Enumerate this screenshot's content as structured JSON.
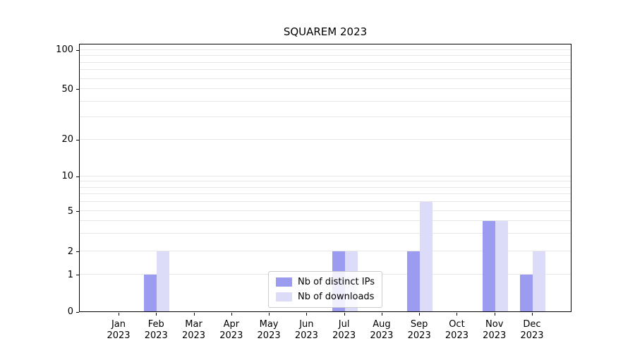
{
  "chart_data": {
    "type": "bar",
    "title": "SQUAREM 2023",
    "categories": [
      "Jan",
      "Feb",
      "Mar",
      "Apr",
      "May",
      "Jun",
      "Jul",
      "Aug",
      "Sep",
      "Oct",
      "Nov",
      "Dec"
    ],
    "year": "2023",
    "series": [
      {
        "name": "Nb of distinct IPs",
        "color": "#9b9bf0",
        "values": [
          0,
          1,
          0,
          0,
          0,
          0,
          2,
          0,
          2,
          0,
          4,
          1
        ]
      },
      {
        "name": "Nb of downloads",
        "color": "#dcdcf8",
        "values": [
          0,
          2,
          0,
          0,
          0,
          0,
          2,
          0,
          6,
          0,
          4,
          2
        ]
      }
    ],
    "yticks": [
      0,
      1,
      2,
      5,
      10,
      20,
      50,
      100
    ],
    "minor_gridlines": [
      1,
      2,
      3,
      4,
      5,
      6,
      7,
      8,
      9,
      10,
      20,
      30,
      40,
      50,
      60,
      70,
      80,
      90,
      100
    ],
    "ylim": [
      0,
      110
    ],
    "scale": "symlog",
    "grid": true,
    "legend_position": "lower center",
    "colors": {
      "grid": "#e6e6e6",
      "axis": "#000000",
      "background": "#ffffff"
    }
  }
}
